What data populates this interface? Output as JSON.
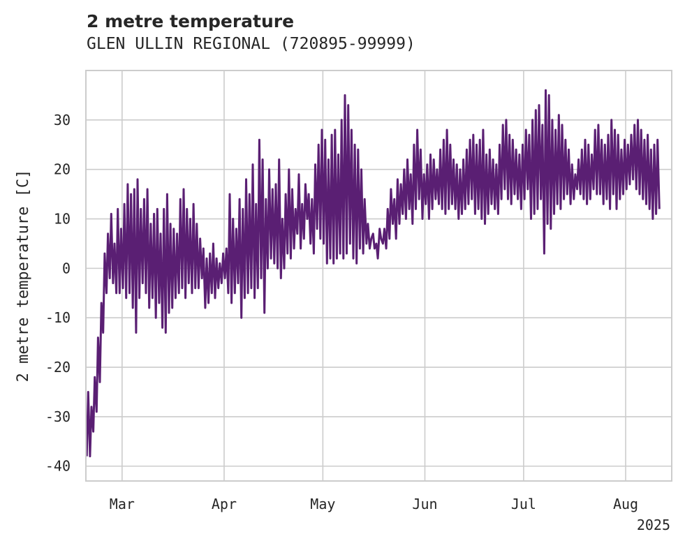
{
  "chart_data": {
    "type": "line",
    "title": "2 metre temperature",
    "subtitle": "GLEN ULLIN REGIONAL (720895-99999)",
    "ylabel": "2 metre temperature [C]",
    "xlabel": "",
    "ylim": [
      -43,
      40
    ],
    "yticks": [
      -40,
      -30,
      -20,
      -10,
      0,
      10,
      20,
      30
    ],
    "xlim": [
      "2025-02-18",
      "2025-08-15"
    ],
    "xticks": [
      {
        "date": "2025-03-01",
        "label": "Mar"
      },
      {
        "date": "2025-04-01",
        "label": "Apr"
      },
      {
        "date": "2025-05-01",
        "label": "May"
      },
      {
        "date": "2025-06-01",
        "label": "Jun"
      },
      {
        "date": "2025-07-01",
        "label": "Jul"
      },
      {
        "date": "2025-08-01",
        "label": "Aug"
      }
    ],
    "year_label": "2025",
    "grid": true,
    "color": "#5a1f73",
    "series": [
      {
        "x": [
          "2025-02-18",
          "2025-02-19",
          "2025-02-20",
          "2025-02-21",
          "2025-02-22",
          "2025-02-23",
          "2025-02-24",
          "2025-02-25",
          "2025-02-26",
          "2025-02-27",
          "2025-02-28",
          "2025-03-01",
          "2025-03-02",
          "2025-03-03",
          "2025-03-04",
          "2025-03-05",
          "2025-03-06",
          "2025-03-07",
          "2025-03-08",
          "2025-03-09",
          "2025-03-10",
          "2025-03-11",
          "2025-03-12",
          "2025-03-13",
          "2025-03-14",
          "2025-03-15",
          "2025-03-16",
          "2025-03-17",
          "2025-03-18",
          "2025-03-19",
          "2025-03-20",
          "2025-03-21",
          "2025-03-22",
          "2025-03-23",
          "2025-03-24",
          "2025-03-25",
          "2025-03-26",
          "2025-03-27",
          "2025-03-28",
          "2025-03-29",
          "2025-03-30",
          "2025-03-31",
          "2025-04-01",
          "2025-04-02",
          "2025-04-03",
          "2025-04-04",
          "2025-04-05",
          "2025-04-06",
          "2025-04-07",
          "2025-04-08",
          "2025-04-09",
          "2025-04-10",
          "2025-04-11",
          "2025-04-12",
          "2025-04-13",
          "2025-04-14",
          "2025-04-15",
          "2025-04-16",
          "2025-04-17",
          "2025-04-18",
          "2025-04-19",
          "2025-04-20",
          "2025-04-21",
          "2025-04-22",
          "2025-04-23",
          "2025-04-24",
          "2025-04-25",
          "2025-04-26",
          "2025-04-27",
          "2025-04-28",
          "2025-04-29",
          "2025-04-30",
          "2025-05-01",
          "2025-05-02",
          "2025-05-03",
          "2025-05-04",
          "2025-05-05",
          "2025-05-06",
          "2025-05-07",
          "2025-05-08",
          "2025-05-09",
          "2025-05-10",
          "2025-05-11",
          "2025-05-12",
          "2025-05-13",
          "2025-05-14",
          "2025-05-15",
          "2025-05-16",
          "2025-05-17",
          "2025-05-18",
          "2025-05-19",
          "2025-05-20",
          "2025-05-21",
          "2025-05-22",
          "2025-05-23",
          "2025-05-24",
          "2025-05-25",
          "2025-05-26",
          "2025-05-27",
          "2025-05-28",
          "2025-05-29",
          "2025-05-30",
          "2025-05-31",
          "2025-06-01",
          "2025-06-02",
          "2025-06-03",
          "2025-06-04",
          "2025-06-05",
          "2025-06-06",
          "2025-06-07",
          "2025-06-08",
          "2025-06-09",
          "2025-06-10",
          "2025-06-11",
          "2025-06-12",
          "2025-06-13",
          "2025-06-14",
          "2025-06-15",
          "2025-06-16",
          "2025-06-17",
          "2025-06-18",
          "2025-06-19",
          "2025-06-20",
          "2025-06-21",
          "2025-06-22",
          "2025-06-23",
          "2025-06-24",
          "2025-06-25",
          "2025-06-26",
          "2025-06-27",
          "2025-06-28",
          "2025-06-29",
          "2025-06-30",
          "2025-07-01",
          "2025-07-02",
          "2025-07-03",
          "2025-07-04",
          "2025-07-05",
          "2025-07-06",
          "2025-07-07",
          "2025-07-08",
          "2025-07-09",
          "2025-07-10",
          "2025-07-11",
          "2025-07-12",
          "2025-07-13",
          "2025-07-14",
          "2025-07-15",
          "2025-07-16",
          "2025-07-17",
          "2025-07-18",
          "2025-07-19",
          "2025-07-20",
          "2025-07-21",
          "2025-07-22",
          "2025-07-23",
          "2025-07-24",
          "2025-07-25",
          "2025-07-26",
          "2025-07-27",
          "2025-07-28",
          "2025-07-29",
          "2025-07-30",
          "2025-07-31",
          "2025-08-01",
          "2025-08-02",
          "2025-08-03",
          "2025-08-04",
          "2025-08-05",
          "2025-08-06",
          "2025-08-07",
          "2025-08-08",
          "2025-08-09",
          "2025-08-10",
          "2025-08-11",
          "2025-08-12",
          "2025-08-13",
          "2025-08-14",
          "2025-08-15"
        ],
        "min": [
          -38,
          -38,
          -33,
          -29,
          -23,
          -13,
          -5,
          -2,
          -3,
          -5,
          -5,
          -4,
          -6,
          -5,
          -8,
          -13,
          -6,
          -3,
          -5,
          -8,
          -6,
          -10,
          -7,
          -12,
          -13,
          -9,
          -8,
          -6,
          -5,
          -4,
          -6,
          -3,
          -5,
          -4,
          -4,
          -2,
          -8,
          -7,
          -5,
          -6,
          -4,
          -3,
          -2,
          -5,
          -7,
          -5,
          -3,
          -10,
          -6,
          -5,
          -4,
          -6,
          -4,
          -2,
          -9,
          0,
          2,
          1,
          0,
          -2,
          0,
          3,
          2,
          4,
          7,
          4,
          6,
          10,
          5,
          3,
          8,
          6,
          5,
          1,
          2,
          1,
          2,
          3,
          2,
          3,
          5,
          2,
          1,
          4,
          3,
          5,
          4,
          7,
          5,
          8,
          5,
          4,
          6,
          9,
          6,
          9,
          11,
          10,
          12,
          9,
          12,
          14,
          10,
          13,
          10,
          12,
          14,
          13,
          12,
          11,
          12,
          13,
          12,
          10,
          11,
          12,
          13,
          14,
          11,
          12,
          10,
          9,
          11,
          13,
          12,
          11,
          14,
          16,
          14,
          13,
          15,
          14,
          12,
          14,
          16,
          10,
          11,
          12,
          14,
          3,
          9,
          8,
          11,
          13,
          12,
          14,
          15,
          13,
          14,
          16,
          15,
          14,
          13,
          14,
          16,
          15,
          15,
          13,
          14,
          12,
          15,
          12,
          14,
          15,
          16,
          17,
          18,
          16,
          15,
          14,
          13,
          12,
          10,
          11,
          12,
          13,
          17
        ],
        "max": [
          -25,
          -28,
          -22,
          -14,
          -7,
          3,
          7,
          11,
          5,
          12,
          8,
          13,
          17,
          15,
          16,
          18,
          12,
          14,
          16,
          9,
          11,
          12,
          7,
          12,
          15,
          9,
          8,
          7,
          14,
          16,
          12,
          10,
          13,
          9,
          6,
          4,
          2,
          3,
          5,
          2,
          1,
          3,
          4,
          15,
          10,
          8,
          14,
          12,
          18,
          15,
          21,
          13,
          26,
          22,
          14,
          20,
          16,
          17,
          22,
          10,
          15,
          20,
          16,
          12,
          19,
          13,
          17,
          15,
          14,
          21,
          25,
          28,
          26,
          22,
          27,
          28,
          23,
          30,
          35,
          33,
          28,
          25,
          24,
          20,
          14,
          9,
          6,
          4,
          2,
          6,
          8,
          12,
          16,
          14,
          18,
          17,
          20,
          22,
          19,
          25,
          28,
          24,
          19,
          21,
          23,
          22,
          20,
          24,
          26,
          28,
          25,
          22,
          21,
          20,
          22,
          24,
          26,
          27,
          25,
          26,
          28,
          23,
          24,
          22,
          21,
          25,
          29,
          30,
          27,
          26,
          24,
          23,
          25,
          28,
          27,
          30,
          32,
          33,
          29,
          36,
          35,
          30,
          28,
          31,
          29,
          26,
          24,
          21,
          19,
          22,
          24,
          26,
          25,
          23,
          28,
          29,
          26,
          25,
          27,
          30,
          28,
          27,
          24,
          26,
          25,
          27,
          29,
          30,
          28,
          26,
          27,
          24,
          25,
          26
        ]
      }
    ]
  }
}
